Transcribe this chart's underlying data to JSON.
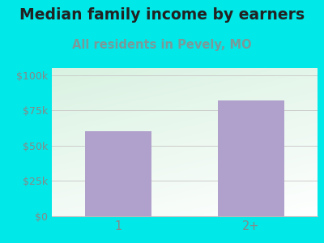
{
  "title": "Median family income by earners",
  "subtitle": "All residents in Pevely, MO",
  "categories": [
    "1",
    "2+"
  ],
  "values": [
    60000,
    82000
  ],
  "bar_color": "#b0a0cc",
  "bg_color": "#00e8e8",
  "title_color": "#222222",
  "subtitle_color": "#7a9a9a",
  "axis_color": "#888888",
  "grid_color": "#cccccc",
  "yticks": [
    0,
    25000,
    50000,
    75000,
    100000
  ],
  "ytick_labels": [
    "$0",
    "$25k",
    "$50k",
    "$75k",
    "$100k"
  ],
  "ylim": [
    0,
    105000
  ],
  "title_fontsize": 13.5,
  "subtitle_fontsize": 10.5
}
